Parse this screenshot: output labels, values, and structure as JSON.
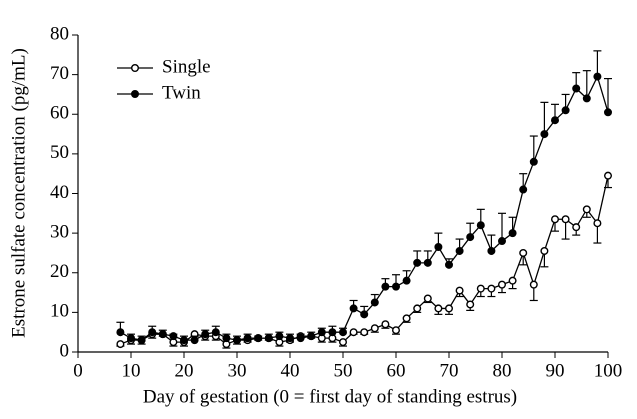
{
  "chart_data": {
    "type": "line",
    "xlabel": "Day of gestation (0 = first day of standing estrus)",
    "ylabel": "Estrone sulfate concentration (pg/mL)",
    "x": [
      8,
      10,
      12,
      14,
      16,
      18,
      20,
      22,
      24,
      26,
      28,
      30,
      32,
      34,
      36,
      38,
      40,
      42,
      44,
      46,
      48,
      50,
      52,
      54,
      56,
      58,
      60,
      62,
      64,
      66,
      68,
      70,
      72,
      74,
      76,
      78,
      80,
      82,
      84,
      86,
      88,
      90,
      92,
      94,
      96,
      98,
      100
    ],
    "series": [
      {
        "name": "Single",
        "color": "#000000",
        "marker": "open",
        "error_direction": "down",
        "values": [
          2,
          3,
          3,
          4.5,
          4.5,
          2.5,
          2.5,
          4.5,
          4,
          4,
          2,
          3,
          3,
          3.5,
          3.5,
          2.5,
          3,
          4,
          4,
          3.5,
          3.5,
          2.5,
          5,
          5,
          6,
          7,
          5.5,
          8.5,
          11,
          13.5,
          11,
          11,
          15.5,
          12,
          16,
          16,
          17,
          18,
          25,
          17,
          25.5,
          33.5,
          33.5,
          31.5,
          36,
          32.5,
          44.5
        ],
        "errors": [
          0.5,
          1,
          1,
          1,
          0.5,
          1,
          1,
          0.5,
          1,
          1,
          1,
          1,
          0.5,
          0.5,
          0.5,
          1,
          0.5,
          0.5,
          0.5,
          1,
          1,
          1,
          0.5,
          0.5,
          1,
          1,
          1,
          1,
          1,
          1,
          1.5,
          1.5,
          1.5,
          1.5,
          2,
          2,
          2,
          2,
          3,
          4,
          4,
          3,
          5,
          2,
          2,
          5,
          3
        ]
      },
      {
        "name": "Twin",
        "color": "#000000",
        "marker": "filled",
        "error_direction": "up",
        "values": [
          5,
          3.5,
          3,
          5,
          4.5,
          4,
          3,
          3,
          4.5,
          5,
          3.5,
          3,
          3.5,
          3.5,
          3.5,
          4,
          3.5,
          3.5,
          4,
          5,
          5,
          5,
          11,
          9.5,
          12.5,
          16.5,
          16.5,
          18,
          22.5,
          22.5,
          26.5,
          22,
          25.5,
          29,
          32,
          25.5,
          28,
          30,
          41,
          48,
          55,
          58.5,
          61,
          66.5,
          64,
          69.5,
          60.5
        ],
        "errors": [
          2.5,
          1,
          1,
          1.5,
          1,
          0.5,
          1,
          1,
          1,
          1.5,
          1,
          1,
          1,
          0.5,
          1,
          1,
          1,
          1,
          1,
          1,
          1.5,
          1,
          2,
          2,
          2,
          2,
          3,
          2.5,
          3,
          3,
          3.5,
          1.5,
          3,
          3.5,
          4,
          4,
          7,
          4,
          4,
          6.5,
          8,
          4,
          4,
          4,
          7,
          6.5,
          8.5
        ]
      }
    ],
    "xlim": [
      0,
      100
    ],
    "xticks": [
      0,
      10,
      20,
      30,
      40,
      50,
      60,
      70,
      80,
      90,
      100
    ],
    "ylim": [
      0,
      80
    ],
    "yticks": [
      0,
      10,
      20,
      30,
      40,
      50,
      60,
      70,
      80
    ],
    "grid": false,
    "legend_position": "upper left"
  }
}
